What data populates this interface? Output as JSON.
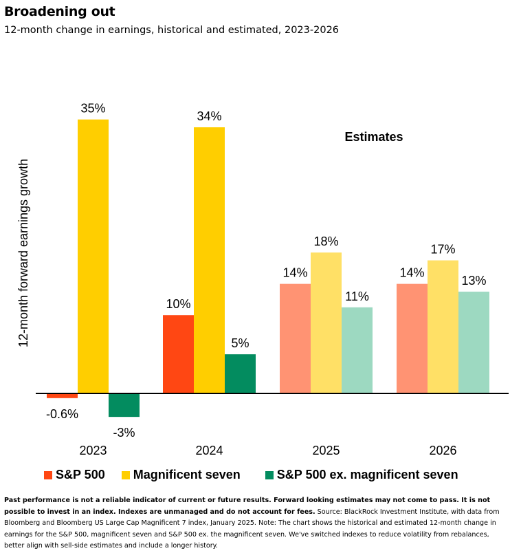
{
  "title": "Broadening out",
  "subtitle": "12-month change in earnings, historical and estimated, 2023-2026",
  "chart_data": {
    "type": "bar",
    "categories": [
      "2023",
      "2024",
      "2025",
      "2026"
    ],
    "ylabel": "12-month forward earnings growth",
    "annotation": "Estimates",
    "ylim": [
      -4,
      37
    ],
    "grid": false,
    "legend_position": "bottom",
    "estimated_categories": [
      "2025",
      "2026"
    ],
    "series": [
      {
        "name": "S&P 500",
        "values": [
          -0.6,
          10,
          14,
          14
        ],
        "labels": [
          "-0.6%",
          "10%",
          "14%",
          "14%"
        ],
        "color": "#ff4713",
        "estimate_color": "#ff9373"
      },
      {
        "name": "Magnificent seven",
        "values": [
          35,
          34,
          18,
          17
        ],
        "labels": [
          "35%",
          "34%",
          "18%",
          "17%"
        ],
        "color": "#ffce00",
        "estimate_color": "#ffe066"
      },
      {
        "name": "S&P 500 ex. magnificent seven",
        "values": [
          -3,
          5,
          11,
          13
        ],
        "labels": [
          "-3%",
          "5%",
          "11%",
          "13%"
        ],
        "color": "#038c5f",
        "estimate_color": "#9dd9c1"
      }
    ]
  },
  "footnote": {
    "bold": "Past performance is not a reliable indicator of current or future results. Forward looking estimates may not come to pass. It is not possible to invest in an index. Indexes are unmanaged and do not account for fees.",
    "regular": " Source: BlackRock Investment Institute, with data from Bloomberg and Bloomberg US Large Cap Magnificent 7 index, January 2025. Note: The chart shows the historical and estimated 12-month change in earnings for the S&P 500, magnificent seven and S&P 500 ex. the magnificent seven. We've switched indexes to reduce volatility from rebalances, better align with sell-side estimates and include a longer history."
  }
}
